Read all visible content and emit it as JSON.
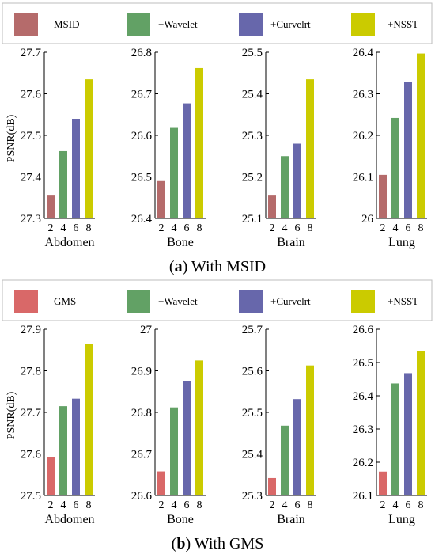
{
  "chart_data": [
    {
      "type": "bar",
      "panel_label": "a",
      "caption": "With MSID",
      "legend_position": "top",
      "ylabel": "PSNR(dB)",
      "series": [
        {
          "name": "MSID",
          "color": "#b56b6b"
        },
        {
          "name": "+Wavelet",
          "color": "#62a165"
        },
        {
          "name": "+Curvelrt",
          "color": "#6767ab"
        },
        {
          "name": "+NSST",
          "color": "#cbcb00"
        }
      ],
      "subplots": [
        {
          "label": "Abdomen",
          "ylim": [
            27.3,
            27.7
          ],
          "yticks": [
            "27.3",
            "27.4",
            "27.5",
            "27.6",
            "27.7"
          ],
          "xticks": [
            "2",
            "4",
            "6",
            "8"
          ],
          "values": [
            27.355,
            27.462,
            27.54,
            27.635
          ]
        },
        {
          "label": "Bone",
          "ylim": [
            26.4,
            26.8
          ],
          "yticks": [
            "26.4",
            "26.5",
            "26.6",
            "26.7",
            "26.8"
          ],
          "xticks": [
            "2",
            "4",
            "6",
            "8"
          ],
          "values": [
            26.49,
            26.618,
            26.677,
            26.762
          ]
        },
        {
          "label": "Brain",
          "ylim": [
            25.1,
            25.5
          ],
          "yticks": [
            "25.1",
            "25.2",
            "25.3",
            "25.4",
            "25.5"
          ],
          "xticks": [
            "2",
            "4",
            "6",
            "8"
          ],
          "values": [
            25.155,
            25.25,
            25.28,
            25.435
          ]
        },
        {
          "label": "Lung",
          "ylim": [
            26.0,
            26.4
          ],
          "yticks": [
            "26",
            "26.1",
            "26.2",
            "26.3",
            "26.4"
          ],
          "xticks": [
            "2",
            "4",
            "6",
            "8"
          ],
          "values": [
            26.105,
            26.242,
            26.328,
            26.397
          ]
        }
      ]
    },
    {
      "type": "bar",
      "panel_label": "b",
      "caption": "With GMS",
      "legend_position": "top",
      "ylabel": "PSNR(dB)",
      "series": [
        {
          "name": "GMS",
          "color": "#d96868"
        },
        {
          "name": "+Wavelet",
          "color": "#62a165"
        },
        {
          "name": "+Curvelrt",
          "color": "#6767ab"
        },
        {
          "name": "+NSST",
          "color": "#cbcb00"
        }
      ],
      "subplots": [
        {
          "label": "Abdomen",
          "ylim": [
            27.5,
            27.9
          ],
          "yticks": [
            "27.5",
            "27.6",
            "27.7",
            "27.8",
            "27.9"
          ],
          "xticks": [
            "2",
            "4",
            "6",
            "8"
          ],
          "values": [
            27.592,
            27.715,
            27.733,
            27.865
          ]
        },
        {
          "label": "Bone",
          "ylim": [
            26.6,
            27.0
          ],
          "yticks": [
            "26.6",
            "26.7",
            "26.8",
            "26.9",
            "27"
          ],
          "xticks": [
            "2",
            "4",
            "6",
            "8"
          ],
          "values": [
            26.658,
            26.812,
            26.876,
            26.925
          ]
        },
        {
          "label": "Brain",
          "ylim": [
            25.3,
            25.7
          ],
          "yticks": [
            "25.3",
            "25.4",
            "25.5",
            "25.6",
            "25.7"
          ],
          "xticks": [
            "2",
            "4",
            "6",
            "8"
          ],
          "values": [
            25.342,
            25.468,
            25.532,
            25.613
          ]
        },
        {
          "label": "Lung",
          "ylim": [
            26.1,
            26.6
          ],
          "yticks": [
            "26.1",
            "26.2",
            "26.3",
            "26.4",
            "26.5",
            "26.6"
          ],
          "xticks": [
            "2",
            "4",
            "6",
            "8"
          ],
          "values": [
            26.172,
            26.437,
            26.468,
            26.535
          ]
        }
      ]
    }
  ]
}
